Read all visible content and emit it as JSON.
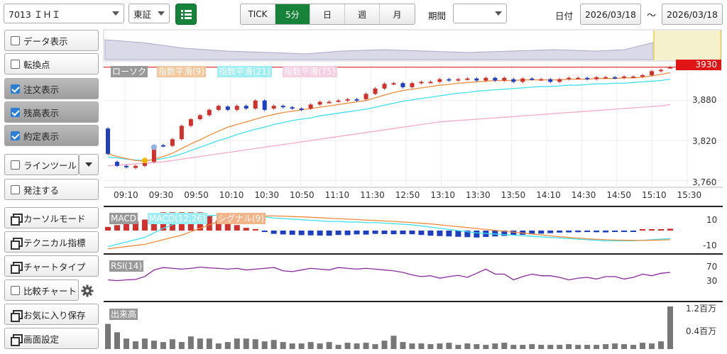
{
  "toolbar": {
    "symbol": "7013 ＩＨＩ",
    "market": "東証",
    "intervals": [
      "TICK",
      "5分",
      "日",
      "週",
      "月"
    ],
    "active_interval": "5分",
    "period_label": "期間",
    "period_value": "",
    "date_label": "日付",
    "date_from": "2026/03/18",
    "date_sep": "～",
    "date_to": "2026/03/18"
  },
  "sidebar": {
    "data_display": "データ表示",
    "turning_point": "転換点",
    "order_display": "注文表示",
    "position_display": "残高表示",
    "execution_display": "約定表示",
    "line_tool": "ラインツール",
    "place_order": "発注する",
    "cursor_mode": "カーソルモード",
    "technical": "テクニカル指標",
    "chart_type": "チャートタイプ",
    "compare_chart": "比較チャート",
    "favorites": "お気に入り保存",
    "screen_settings": "画面設定"
  },
  "colors": {
    "up": "#d0312d",
    "down": "#1f3fbf",
    "ema9": "#f08c3c",
    "ema21": "#3ee0f0",
    "ema75": "#f4a9c8",
    "price_line": "#e02020"
  },
  "chart_data": [
    {
      "type": "candlestick",
      "legend": [
        "ローソク",
        "指数平滑(9)",
        "指数平滑(21)",
        "指数平滑(75)"
      ],
      "current_price_label": "3930",
      "y_ticks": [
        "3,880",
        "3,820",
        "3,760"
      ],
      "x_ticks": [
        "09:10",
        "09:30",
        "09:50",
        "10:10",
        "10:30",
        "10:50",
        "11:10",
        "11:30",
        "12:50",
        "13:10",
        "13:30",
        "13:50",
        "14:10",
        "14:30",
        "14:50",
        "15:10",
        "15:30"
      ],
      "ylim": [
        3752,
        3935
      ],
      "close": [
        3800,
        3782,
        3780,
        3782,
        3786,
        3812,
        3812,
        3822,
        3842,
        3852,
        3858,
        3866,
        3872,
        3866,
        3872,
        3868,
        3880,
        3866,
        3872,
        3870,
        3868,
        3866,
        3874,
        3878,
        3878,
        3880,
        3882,
        3880,
        3890,
        3898,
        3905,
        3906,
        3900,
        3906,
        3908,
        3908,
        3912,
        3910,
        3912,
        3913,
        3910,
        3914,
        3910,
        3914,
        3908,
        3913,
        3912,
        3912,
        3908,
        3912,
        3914,
        3914,
        3912,
        3915,
        3915,
        3914,
        3916,
        3916,
        3918,
        3924,
        3926,
        3930
      ],
      "open": [
        3838,
        3788,
        3782,
        3779,
        3782,
        3788,
        3813,
        3812,
        3822,
        3842,
        3852,
        3858,
        3866,
        3871,
        3866,
        3872,
        3868,
        3880,
        3868,
        3872,
        3870,
        3868,
        3868,
        3874,
        3878,
        3879,
        3880,
        3882,
        3882,
        3890,
        3898,
        3905,
        3906,
        3900,
        3906,
        3908,
        3908,
        3912,
        3910,
        3912,
        3913,
        3910,
        3914,
        3910,
        3912,
        3908,
        3913,
        3912,
        3912,
        3908,
        3912,
        3914,
        3914,
        3912,
        3915,
        3915,
        3914,
        3916,
        3916,
        3918,
        3924,
        3930
      ],
      "ema9": [
        3800,
        3796,
        3793,
        3790,
        3789,
        3792,
        3796,
        3801,
        3808,
        3815,
        3821,
        3828,
        3834,
        3840,
        3844,
        3848,
        3852,
        3856,
        3859,
        3862,
        3864,
        3866,
        3868,
        3870,
        3872,
        3874,
        3876,
        3878,
        3880,
        3884,
        3888,
        3892,
        3895,
        3897,
        3899,
        3901,
        3903,
        3904,
        3906,
        3907,
        3908,
        3909,
        3910,
        3910,
        3910,
        3911,
        3911,
        3911,
        3911,
        3911,
        3912,
        3912,
        3912,
        3913,
        3913,
        3913,
        3914,
        3914,
        3915,
        3917,
        3919,
        3922
      ],
      "ema21": [
        3795,
        3794,
        3792,
        3791,
        3790,
        3791,
        3793,
        3796,
        3800,
        3805,
        3810,
        3815,
        3820,
        3824,
        3829,
        3833,
        3837,
        3840,
        3844,
        3847,
        3850,
        3852,
        3854,
        3857,
        3859,
        3861,
        3863,
        3865,
        3867,
        3870,
        3873,
        3876,
        3879,
        3881,
        3883,
        3885,
        3887,
        3889,
        3891,
        3892,
        3894,
        3895,
        3896,
        3897,
        3898,
        3899,
        3900,
        3901,
        3901,
        3902,
        3903,
        3903,
        3904,
        3905,
        3905,
        3906,
        3906,
        3907,
        3908,
        3909,
        3910,
        3912
      ],
      "ema75": [
        3782,
        3783,
        3784,
        3785,
        3786,
        3787,
        3788,
        3790,
        3792,
        3794,
        3796,
        3798,
        3800,
        3802,
        3804,
        3806,
        3808,
        3810,
        3812,
        3814,
        3816,
        3818,
        3820,
        3822,
        3824,
        3826,
        3828,
        3830,
        3832,
        3834,
        3836,
        3838,
        3840,
        3842,
        3844,
        3846,
        3848,
        3849,
        3850,
        3851,
        3852,
        3853,
        3854,
        3855,
        3856,
        3857,
        3858,
        3859,
        3860,
        3861,
        3862,
        3863,
        3864,
        3865,
        3866,
        3867,
        3868,
        3869,
        3870,
        3871,
        3872,
        3874
      ]
    },
    {
      "type": "line",
      "legend": [
        "MACD",
        "MACD(12,26)",
        "シグナル(9)"
      ],
      "y_ticks": [
        "10",
        "-10"
      ],
      "ylim": [
        -18,
        18
      ],
      "macd": [
        -14,
        -12,
        -10,
        -8,
        -6,
        -2,
        2,
        5,
        8,
        10,
        12,
        13,
        13.5,
        14,
        14,
        13.5,
        13,
        12,
        11,
        10.5,
        10,
        9.5,
        9,
        8.5,
        8,
        8,
        7.5,
        7.5,
        7,
        7,
        6.5,
        6,
        5.5,
        5,
        4,
        3,
        2,
        1,
        0,
        -1,
        -2,
        -2.5,
        -3,
        -3.5,
        -4,
        -4.5,
        -5,
        -5.5,
        -6,
        -6.5,
        -7,
        -7.5,
        -8,
        -8.5,
        -9,
        -9,
        -9,
        -9,
        -8.5,
        -8,
        -7.5,
        -7
      ],
      "signal": [
        -16,
        -15,
        -14,
        -13,
        -12,
        -10,
        -8,
        -6,
        -4,
        -1,
        2,
        5,
        8,
        10,
        11,
        12,
        12.5,
        12.8,
        12.8,
        12.6,
        12.3,
        12,
        11.6,
        11.2,
        10.8,
        10.4,
        10,
        9.6,
        9.2,
        8.8,
        8.4,
        8,
        7.5,
        7,
        6.4,
        5.8,
        5,
        4.2,
        3.4,
        2.6,
        1.8,
        1,
        0.2,
        -0.6,
        -1.4,
        -2.2,
        -3,
        -3.8,
        -4.6,
        -5.4,
        -6,
        -6.6,
        -7.2,
        -7.6,
        -8,
        -8.3,
        -8.5,
        -8.6,
        -8.6,
        -8.5,
        -8.3,
        -8
      ]
    },
    {
      "type": "line",
      "legend": [
        "RSI(14)"
      ],
      "y_ticks": [
        "70",
        "30"
      ],
      "ylim": [
        0,
        100
      ],
      "values": [
        44,
        42,
        44,
        45,
        52,
        68,
        74,
        72,
        70,
        72,
        75,
        73,
        72,
        70,
        72,
        68,
        70,
        72,
        74,
        66,
        64,
        68,
        72,
        70,
        68,
        74,
        72,
        70,
        72,
        70,
        68,
        66,
        62,
        56,
        52,
        54,
        48,
        52,
        55,
        50,
        60,
        70,
        58,
        58,
        44,
        52,
        58,
        54,
        54,
        50,
        44,
        48,
        50,
        46,
        52,
        52,
        46,
        50,
        58,
        54,
        60,
        62
      ]
    },
    {
      "type": "bar",
      "legend": [
        "出来高"
      ],
      "y_ticks": [
        "1.2百万",
        "0.4百万"
      ],
      "ylim": [
        0,
        1.3
      ],
      "values": [
        0.72,
        0.48,
        0.3,
        0.22,
        0.3,
        0.24,
        0.2,
        0.28,
        0.2,
        0.36,
        0.3,
        0.3,
        0.16,
        0.2,
        0.3,
        0.3,
        0.28,
        0.22,
        0.26,
        0.2,
        0.16,
        0.16,
        0.2,
        0.16,
        0.2,
        0.12,
        0.18,
        0.16,
        0.18,
        0.14,
        0.24,
        0.38,
        0.2,
        0.16,
        0.16,
        0.14,
        0.16,
        0.18,
        0.12,
        0.16,
        0.14,
        0.12,
        0.16,
        0.18,
        0.12,
        0.12,
        0.14,
        0.12,
        0.12,
        0.12,
        0.14,
        0.12,
        0.12,
        0.12,
        0.14,
        0.16,
        0.14,
        0.12,
        0.18,
        0.16,
        0.22,
        1.22
      ]
    }
  ]
}
